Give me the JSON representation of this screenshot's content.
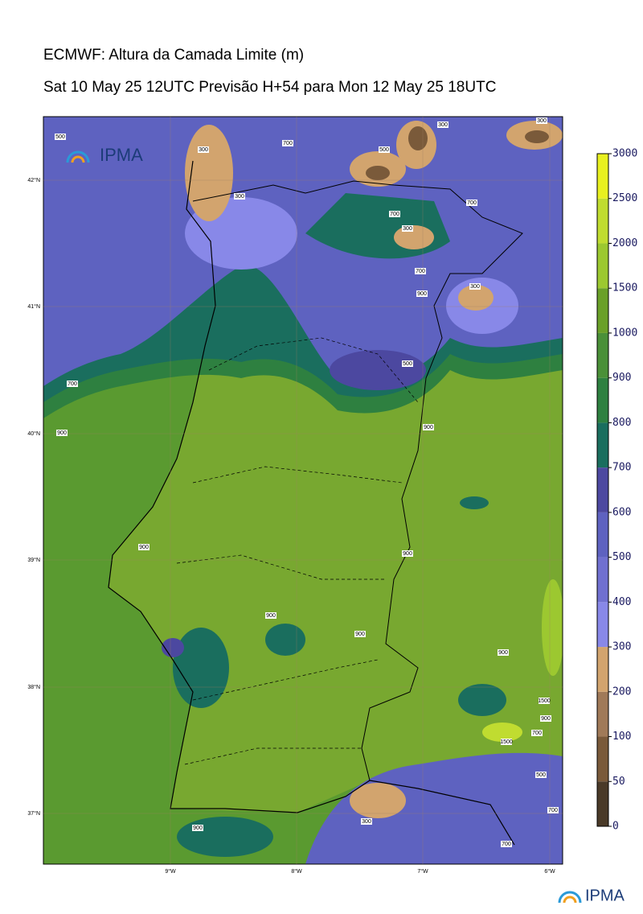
{
  "header": {
    "title": "ECMWF: Altura da Camada Limite (m)",
    "subtitle": "Sat 10 May 25 12UTC Previsão H+54 para Mon 12 May 25 18UTC"
  },
  "map": {
    "lat_labels": [
      "42°N",
      "41°N",
      "40°N",
      "39°N",
      "38°N",
      "37°N"
    ],
    "lon_labels": [
      "9°W",
      "8°W",
      "7°W",
      "6°W"
    ],
    "contour_labels": [
      "500",
      "300",
      "700",
      "500",
      "300",
      "300",
      "300",
      "700",
      "300",
      "700",
      "700",
      "900",
      "300",
      "500",
      "700",
      "900",
      "900",
      "900",
      "900",
      "900",
      "900",
      "900",
      "1500",
      "900",
      "700",
      "1500",
      "300",
      "900",
      "700",
      "500",
      "700"
    ]
  },
  "colorbar": {
    "levels": [
      0,
      50,
      100,
      200,
      300,
      400,
      500,
      600,
      700,
      800,
      900,
      1000,
      1500,
      2000,
      2500,
      3000
    ],
    "colors": [
      "#4a3a28",
      "#7a5a3a",
      "#a07a58",
      "#d2a46e",
      "#8888e8",
      "#7070d0",
      "#5e62c0",
      "#4c48a0",
      "#1a6e5e",
      "#2e8040",
      "#4a9038",
      "#6aa028",
      "#9cc830",
      "#c0dc30",
      "#e8f020"
    ]
  },
  "logos": {
    "top": "IPMA",
    "bottom": "IPMA"
  }
}
